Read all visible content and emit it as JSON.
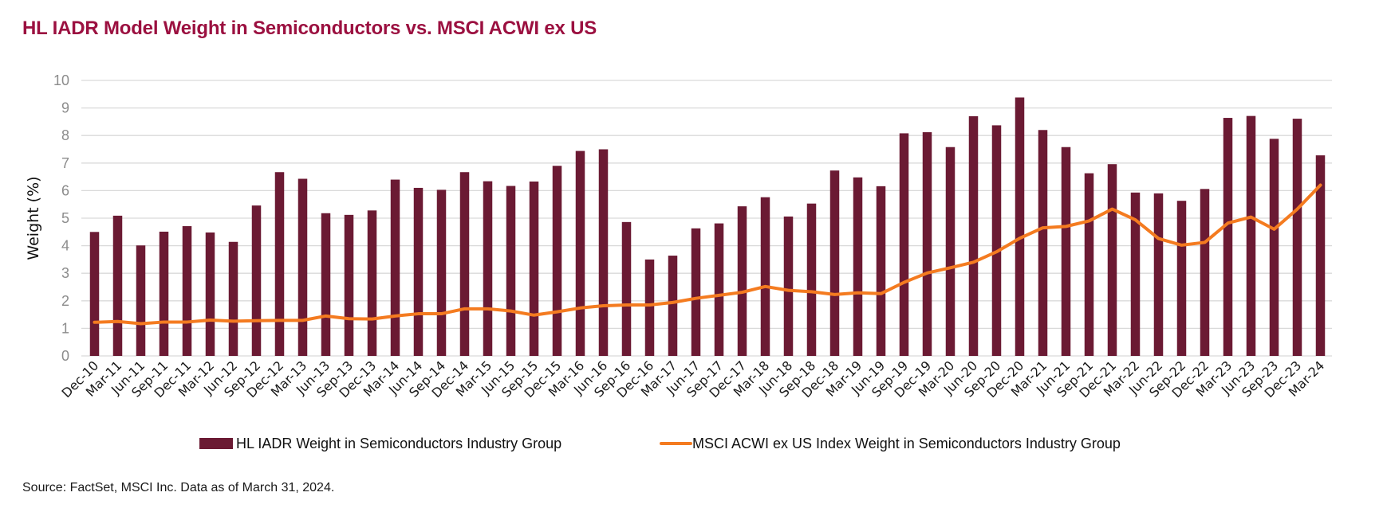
{
  "title": "HL IADR Model Weight in Semiconductors vs. MSCI ACWI ex US",
  "source": "Source: FactSet, MSCI Inc. Data as of March 31, 2024.",
  "colors": {
    "title": "#9b1040",
    "bar": "#6b1a33",
    "line": "#f47b20",
    "grid": "#d9d9d9"
  },
  "chart_data": {
    "type": "bar",
    "title": "HL IADR Model Weight in Semiconductors vs. MSCI ACWI ex US",
    "xlabel": "",
    "ylabel": "Weight (%)",
    "ylim": [
      0,
      10
    ],
    "yticks": [
      "0",
      "1",
      "2",
      "3",
      "4",
      "5",
      "6",
      "7",
      "8",
      "9",
      "10"
    ],
    "grid": true,
    "legend_position": "bottom",
    "categories": [
      "Dec-10",
      "Mar-11",
      "Jun-11",
      "Sep-11",
      "Dec-11",
      "Mar-12",
      "Jun-12",
      "Sep-12",
      "Dec-12",
      "Mar-13",
      "Jun-13",
      "Sep-13",
      "Dec-13",
      "Mar-14",
      "Jun-14",
      "Sep-14",
      "Dec-14",
      "Mar-15",
      "Jun-15",
      "Sep-15",
      "Dec-15",
      "Mar-16",
      "Jun-16",
      "Sep-16",
      "Dec-16",
      "Mar-17",
      "Jun-17",
      "Sep-17",
      "Dec-17",
      "Mar-18",
      "Jun-18",
      "Sep-18",
      "Dec-18",
      "Mar-19",
      "Jun-19",
      "Sep-19",
      "Dec-19",
      "Mar-20",
      "Jun-20",
      "Sep-20",
      "Dec-20",
      "Mar-21",
      "Jun-21",
      "Sep-21",
      "Dec-21",
      "Mar-22",
      "Jun-22",
      "Sep-22",
      "Dec-22",
      "Mar-23",
      "Jun-23",
      "Sep-23",
      "Dec-23",
      "Mar-24"
    ],
    "series": [
      {
        "name": "HL IADR Weight in Semiconductors Industry Group",
        "type": "bar",
        "values": [
          4.5,
          5.09,
          4.01,
          4.51,
          4.71,
          4.48,
          4.14,
          5.46,
          6.67,
          6.43,
          5.18,
          5.12,
          5.28,
          6.4,
          6.1,
          6.03,
          6.67,
          6.34,
          6.17,
          6.33,
          6.9,
          7.44,
          7.5,
          4.86,
          3.5,
          3.64,
          4.63,
          4.81,
          5.43,
          5.76,
          5.06,
          5.53,
          6.73,
          6.48,
          6.16,
          8.08,
          8.12,
          7.58,
          8.7,
          8.37,
          9.38,
          8.2,
          7.58,
          6.63,
          6.96,
          5.93,
          5.9,
          5.63,
          6.06,
          8.64,
          8.71,
          7.88,
          8.61,
          7.28
        ]
      },
      {
        "name": "MSCI ACWI ex US Index Weight in Semiconductors Industry Group",
        "type": "line",
        "values": [
          1.22,
          1.25,
          1.17,
          1.23,
          1.23,
          1.3,
          1.26,
          1.28,
          1.29,
          1.29,
          1.45,
          1.35,
          1.34,
          1.45,
          1.53,
          1.53,
          1.71,
          1.71,
          1.63,
          1.48,
          1.6,
          1.74,
          1.82,
          1.85,
          1.85,
          1.94,
          2.09,
          2.2,
          2.31,
          2.52,
          2.38,
          2.33,
          2.23,
          2.29,
          2.26,
          2.67,
          3.01,
          3.2,
          3.4,
          3.78,
          4.27,
          4.65,
          4.7,
          4.9,
          5.33,
          4.94,
          4.26,
          4.02,
          4.12,
          4.82,
          5.04,
          4.6,
          5.33,
          6.2
        ]
      }
    ]
  }
}
